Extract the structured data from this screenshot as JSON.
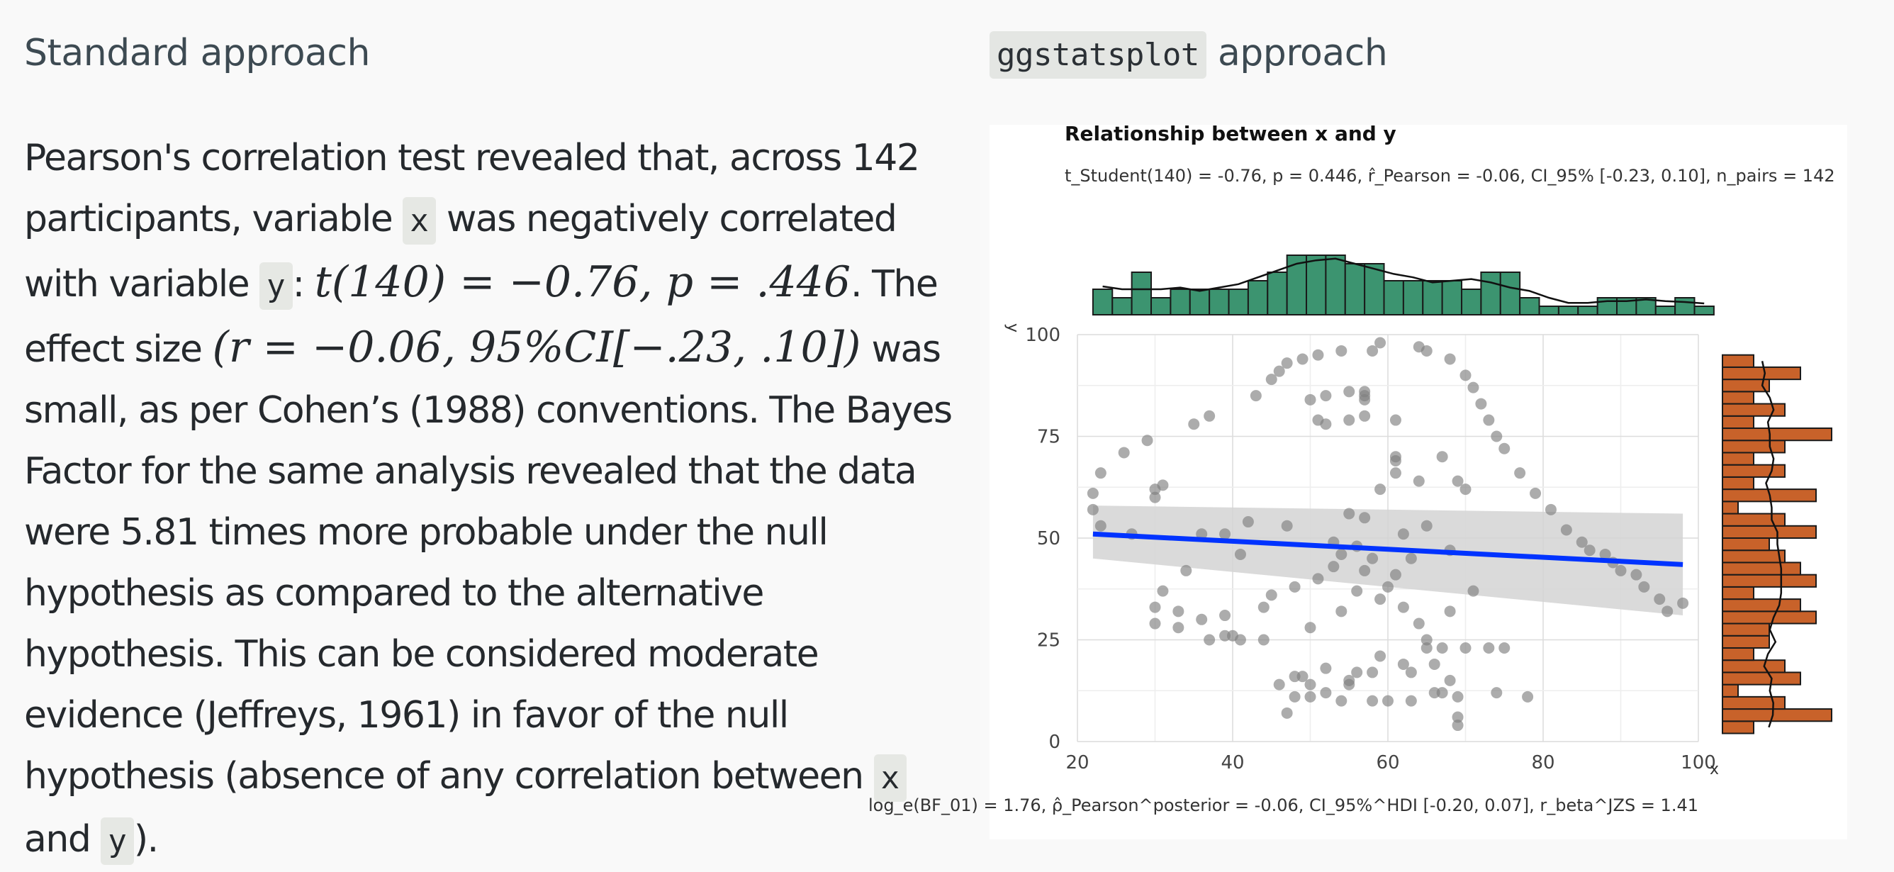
{
  "left": {
    "heading": "Standard approach",
    "para_1": "Pearson's correlation test revealed that, across 142 participants, variable",
    "code_x": "x",
    "para_2": "was negatively correlated with variable",
    "code_y": "y",
    "para_3": ":",
    "math_1": "t(140) = −0.76, p = .446",
    "para_4": ". The effect size",
    "math_2": "(r = −0.06, 95%CI[−.23, .10])",
    "para_5": "was small, as per Cohen’s (1988) conventions. The Bayes Factor for the same analysis revealed that the data were 5.81 times more probable under the null hypothesis as compared to the alternative hypothesis. This can be considered moderate evidence (Jeffreys, 1961) in favor of the null hypothesis (absence of any correlation between",
    "code_x2": "x",
    "para_6": "and",
    "code_y2": "y",
    "para_7": ")."
  },
  "right": {
    "heading_code": "ggstatsplot",
    "heading_rest": "approach",
    "plot_title": "Relationship between x and y",
    "subtitle": "t_Student(140) = -0.76, p = 0.446, r̂_Pearson = -0.06, CI_95% [-0.23, 0.10], n_pairs = 142",
    "caption": "log_e(BF_01) = 1.76, ρ̂_Pearson^posterior = -0.06, CI_95%^HDI [-0.20, 0.07], r_beta^JZS = 1.41"
  },
  "chart_data": {
    "type": "scatter",
    "title": "Relationship between x and y",
    "xlabel": "x",
    "ylabel": "y",
    "xlim": [
      20,
      100
    ],
    "ylim": [
      0,
      100
    ],
    "x_ticks": [
      "20",
      "40",
      "60",
      "80",
      "100"
    ],
    "y_ticks": [
      "0",
      "25",
      "50",
      "75",
      "100"
    ],
    "grid": true,
    "colors": {
      "points": "#7f7f7f",
      "line": "#0033ff",
      "band": "#d3d3d3",
      "x_hist": "#3c9470",
      "y_hist": "#c8622a"
    },
    "regression": {
      "x": [
        22,
        98
      ],
      "y": [
        51,
        43.5
      ],
      "ci_lower": [
        45,
        31
      ],
      "ci_upper": [
        58,
        56
      ]
    },
    "points": [
      [
        22,
        57
      ],
      [
        22,
        61
      ],
      [
        23,
        66
      ],
      [
        23,
        53
      ],
      [
        26,
        71
      ],
      [
        27,
        51
      ],
      [
        29,
        74
      ],
      [
        30,
        62
      ],
      [
        31,
        63
      ],
      [
        30,
        60
      ],
      [
        31,
        37
      ],
      [
        30,
        33
      ],
      [
        30,
        29
      ],
      [
        33,
        28
      ],
      [
        33,
        32
      ],
      [
        34,
        42
      ],
      [
        35,
        78
      ],
      [
        36,
        30
      ],
      [
        37,
        80
      ],
      [
        36,
        51
      ],
      [
        37,
        25
      ],
      [
        39,
        26
      ],
      [
        40,
        26
      ],
      [
        41,
        25
      ],
      [
        39,
        31
      ],
      [
        39,
        51
      ],
      [
        41,
        46
      ],
      [
        42,
        54
      ],
      [
        43,
        85
      ],
      [
        45,
        89
      ],
      [
        44,
        25
      ],
      [
        44,
        33
      ],
      [
        45,
        36
      ],
      [
        46,
        91
      ],
      [
        46,
        14
      ],
      [
        47,
        93
      ],
      [
        47,
        7
      ],
      [
        47,
        53
      ],
      [
        48,
        38
      ],
      [
        48,
        16
      ],
      [
        48,
        11
      ],
      [
        49,
        94
      ],
      [
        49,
        16
      ],
      [
        50,
        84
      ],
      [
        50,
        28
      ],
      [
        50,
        14
      ],
      [
        50,
        11
      ],
      [
        51,
        95
      ],
      [
        51,
        79
      ],
      [
        51,
        40
      ],
      [
        52,
        78
      ],
      [
        52,
        85
      ],
      [
        52,
        18
      ],
      [
        52,
        12
      ],
      [
        53,
        49
      ],
      [
        53,
        43
      ],
      [
        54,
        96
      ],
      [
        54,
        46
      ],
      [
        54,
        32
      ],
      [
        54,
        10
      ],
      [
        55,
        79
      ],
      [
        55,
        86
      ],
      [
        55,
        56
      ],
      [
        55,
        15
      ],
      [
        55,
        14
      ],
      [
        56,
        48
      ],
      [
        56,
        37
      ],
      [
        56,
        17
      ],
      [
        57,
        84
      ],
      [
        57,
        86
      ],
      [
        57,
        85
      ],
      [
        57,
        80
      ],
      [
        57,
        42
      ],
      [
        57,
        55
      ],
      [
        58,
        96
      ],
      [
        58,
        45
      ],
      [
        58,
        17
      ],
      [
        58,
        10
      ],
      [
        59,
        98
      ],
      [
        59,
        62
      ],
      [
        59,
        35
      ],
      [
        59,
        21
      ],
      [
        60,
        38
      ],
      [
        60,
        10
      ],
      [
        61,
        41
      ],
      [
        61,
        66
      ],
      [
        61,
        70
      ],
      [
        61,
        79
      ],
      [
        61,
        69
      ],
      [
        62,
        51
      ],
      [
        62,
        19
      ],
      [
        62,
        33
      ],
      [
        63,
        45
      ],
      [
        63,
        17
      ],
      [
        63,
        10
      ],
      [
        64,
        64
      ],
      [
        64,
        97
      ],
      [
        64,
        29
      ],
      [
        65,
        96
      ],
      [
        65,
        53
      ],
      [
        65,
        25
      ],
      [
        65,
        23
      ],
      [
        66,
        19
      ],
      [
        66,
        12
      ],
      [
        67,
        23
      ],
      [
        67,
        12
      ],
      [
        67,
        70
      ],
      [
        68,
        94
      ],
      [
        68,
        32
      ],
      [
        68,
        47
      ],
      [
        68,
        15
      ],
      [
        69,
        64
      ],
      [
        69,
        11
      ],
      [
        69,
        6
      ],
      [
        69,
        4
      ],
      [
        70,
        90
      ],
      [
        70,
        62
      ],
      [
        70,
        23
      ],
      [
        71,
        87
      ],
      [
        71,
        37
      ],
      [
        72,
        83
      ],
      [
        73,
        23
      ],
      [
        73,
        79
      ],
      [
        74,
        75
      ],
      [
        74,
        12
      ],
      [
        75,
        72
      ],
      [
        75,
        23
      ],
      [
        77,
        66
      ],
      [
        78,
        11
      ],
      [
        79,
        61
      ],
      [
        81,
        57
      ],
      [
        83,
        52
      ],
      [
        85,
        49
      ],
      [
        86,
        47
      ],
      [
        88,
        46
      ],
      [
        89,
        44
      ],
      [
        90,
        42
      ],
      [
        92,
        41
      ],
      [
        93,
        38
      ],
      [
        95,
        35
      ],
      [
        96,
        32
      ],
      [
        98,
        34
      ]
    ],
    "x_hist": {
      "bins_start": 22,
      "bin_width": 2.5,
      "counts": [
        3,
        2,
        5,
        2,
        3,
        3,
        3,
        3,
        4,
        5,
        7,
        7,
        7,
        6,
        6,
        4,
        4,
        4,
        4,
        3,
        5,
        5,
        2,
        1,
        1,
        1,
        2,
        2,
        2,
        1,
        2,
        1
      ]
    },
    "y_hist": {
      "bins_start": 2,
      "bin_width": 3,
      "counts": [
        2,
        7,
        4,
        1,
        5,
        4,
        2,
        3,
        3,
        6,
        5,
        2,
        6,
        5,
        4,
        3,
        6,
        4,
        1,
        6,
        2,
        4,
        2,
        4,
        7,
        2,
        4,
        2,
        3,
        5,
        2
      ]
    }
  }
}
